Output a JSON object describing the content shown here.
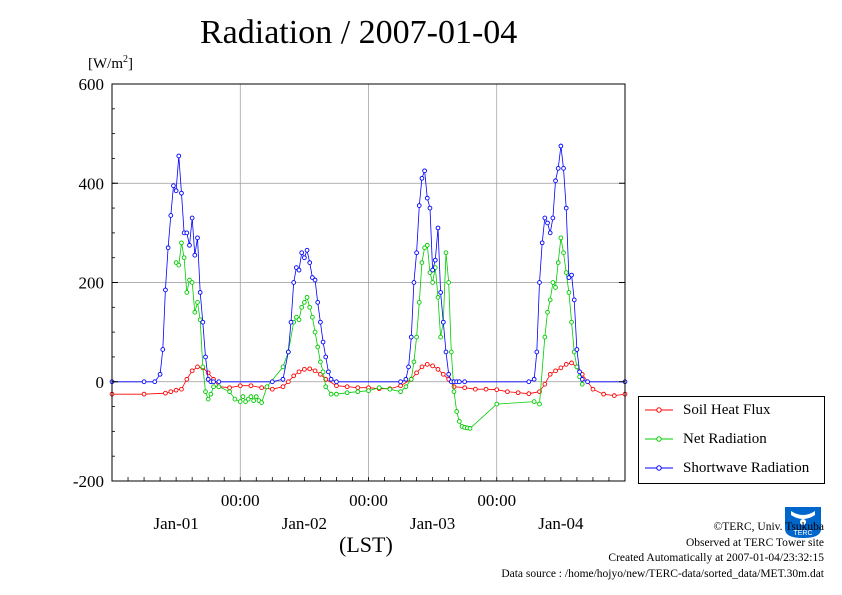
{
  "chart_data": {
    "type": "line",
    "title": "Radiation / 2007-01-04",
    "ylabel": "[W/m²]",
    "xlabel": "(LST)",
    "ylim": [
      -200,
      600
    ],
    "yticks": [
      -200,
      0,
      200,
      400,
      600
    ],
    "x_axis": {
      "unit": "hours since 2007-01-01 00:00 LST",
      "range": [
        -6,
        90
      ],
      "time_ticks": [
        {
          "x": 18,
          "label": "00:00"
        },
        {
          "x": 42,
          "label": "00:00"
        },
        {
          "x": 66,
          "label": "00:00"
        }
      ],
      "date_labels": [
        {
          "x": 6,
          "label": "Jan-01"
        },
        {
          "x": 30,
          "label": "Jan-02"
        },
        {
          "x": 54,
          "label": "Jan-03"
        },
        {
          "x": 78,
          "label": "Jan-04"
        }
      ]
    },
    "grid": true,
    "legend": "bottom-right outside",
    "series": [
      {
        "name": "Soil Heat Flux",
        "color": "#ff0000",
        "x": [
          -6,
          0,
          4,
          5,
          6,
          7,
          8,
          9,
          10,
          11,
          12,
          13,
          14,
          16,
          18,
          20,
          22,
          24,
          26,
          27,
          28,
          29,
          30,
          31,
          32,
          33,
          34,
          36,
          38,
          40,
          42,
          44,
          46,
          48,
          50,
          51,
          52,
          53,
          54,
          55,
          56,
          57,
          58,
          60,
          62,
          64,
          66,
          68,
          70,
          72,
          74,
          75,
          76,
          77,
          78,
          79,
          80,
          81,
          82,
          84,
          86,
          88,
          90
        ],
        "y": [
          -25,
          -25,
          -23,
          -20,
          -17,
          -15,
          5,
          22,
          30,
          28,
          18,
          5,
          -10,
          -12,
          -8,
          -8,
          -12,
          -15,
          -10,
          0,
          12,
          20,
          25,
          26,
          22,
          15,
          5,
          -8,
          -10,
          -12,
          -12,
          -14,
          -14,
          -8,
          5,
          18,
          30,
          35,
          32,
          25,
          15,
          5,
          -10,
          -12,
          -15,
          -15,
          -16,
          -20,
          -22,
          -24,
          -20,
          -5,
          15,
          22,
          28,
          35,
          38,
          30,
          15,
          -15,
          -25,
          -28,
          -25
        ]
      },
      {
        "name": "Net Radiation",
        "color": "#00cc00",
        "x": [
          6,
          6.5,
          7,
          7.5,
          8,
          8.5,
          9,
          9.5,
          10,
          10.5,
          11,
          11.5,
          12,
          12.5,
          13,
          14,
          16,
          17,
          18,
          18.5,
          19,
          19.5,
          20,
          20.5,
          21,
          21.5,
          22,
          23,
          26,
          27,
          28,
          28.5,
          29,
          29.5,
          30,
          30.5,
          31,
          31.5,
          32,
          32.5,
          33,
          33.5,
          34,
          35,
          36,
          38,
          40,
          42,
          44,
          46,
          48,
          49,
          50,
          50.5,
          51,
          51.5,
          52,
          52.5,
          53,
          53.5,
          54,
          54.5,
          55,
          55.5,
          56,
          56.5,
          57,
          57.5,
          58,
          58.5,
          59,
          59.5,
          60,
          60.5,
          61,
          66,
          73,
          74,
          75,
          75.5,
          76,
          76.5,
          77,
          77.5,
          78,
          78.5,
          79,
          79.5,
          80,
          80.5,
          81,
          81.5,
          82
        ],
        "y": [
          240,
          235,
          280,
          250,
          180,
          205,
          200,
          140,
          160,
          125,
          30,
          -20,
          -35,
          -25,
          -10,
          -10,
          -20,
          -35,
          -40,
          -30,
          -40,
          -35,
          -30,
          -38,
          -30,
          -38,
          -42,
          -10,
          30,
          60,
          120,
          130,
          125,
          150,
          160,
          170,
          150,
          130,
          100,
          70,
          40,
          20,
          -10,
          -25,
          -25,
          -22,
          -20,
          -18,
          -12,
          -15,
          -20,
          -10,
          5,
          40,
          90,
          160,
          240,
          270,
          275,
          220,
          200,
          230,
          170,
          90,
          120,
          260,
          200,
          60,
          -20,
          -60,
          -80,
          -90,
          -92,
          -93,
          -94,
          -45,
          -40,
          -45,
          90,
          140,
          165,
          200,
          190,
          240,
          290,
          260,
          220,
          180,
          120,
          60,
          30,
          10,
          -5
        ]
      },
      {
        "name": "Shortwave Radiation",
        "color": "#0000ff",
        "x": [
          -6,
          0,
          2,
          3,
          3.5,
          4,
          4.5,
          5,
          5.5,
          6,
          6.5,
          7,
          7.5,
          8,
          8.5,
          9,
          9.5,
          10,
          10.5,
          11,
          11.5,
          12,
          12.5,
          13,
          14,
          24,
          26,
          27,
          27.5,
          28,
          28.5,
          29,
          29.5,
          30,
          30.5,
          31,
          31.5,
          32,
          32.5,
          33,
          33.5,
          34,
          34.5,
          35,
          36,
          48,
          49,
          49.5,
          50,
          50.5,
          51,
          51.5,
          52,
          52.5,
          53,
          53.5,
          54,
          54.5,
          55,
          55.5,
          56,
          56.5,
          57,
          57.5,
          58,
          58.5,
          59,
          60,
          72,
          73,
          73.5,
          74,
          74.5,
          75,
          75.5,
          76,
          76.5,
          77,
          77.5,
          78,
          78.5,
          79,
          79.5,
          80,
          80.5,
          81,
          81.5,
          82,
          83,
          90
        ],
        "y": [
          0,
          0,
          0,
          15,
          65,
          185,
          270,
          335,
          395,
          385,
          455,
          380,
          300,
          300,
          275,
          330,
          255,
          290,
          180,
          120,
          50,
          5,
          0,
          0,
          0,
          0,
          5,
          60,
          120,
          200,
          230,
          225,
          260,
          250,
          265,
          240,
          210,
          205,
          160,
          120,
          80,
          50,
          20,
          5,
          0,
          0,
          5,
          30,
          90,
          200,
          260,
          355,
          410,
          425,
          370,
          350,
          225,
          245,
          310,
          180,
          120,
          60,
          15,
          0,
          0,
          0,
          0,
          0,
          0,
          5,
          60,
          200,
          280,
          330,
          320,
          300,
          330,
          405,
          430,
          475,
          430,
          350,
          210,
          215,
          165,
          65,
          20,
          5,
          0,
          0
        ]
      }
    ]
  },
  "plot_labels": {
    "title": "Radiation / 2007-01-04",
    "y_unit_prefix": "[W/m",
    "y_unit_sup": "2",
    "y_unit_suffix": "]",
    "x_unit": "(LST)"
  },
  "credits": {
    "line1": "©TERC, Univ. Tsukuba",
    "line2": "Observed at TERC Tower site",
    "line3": "Created Automatically at 2007-01-04/23:32:15",
    "line4": "Data source : /home/hojyo/new/TERC-data/sorted_data/MET.30m.dat"
  },
  "logo": {
    "text": "TERC",
    "color": "#0066cc"
  }
}
